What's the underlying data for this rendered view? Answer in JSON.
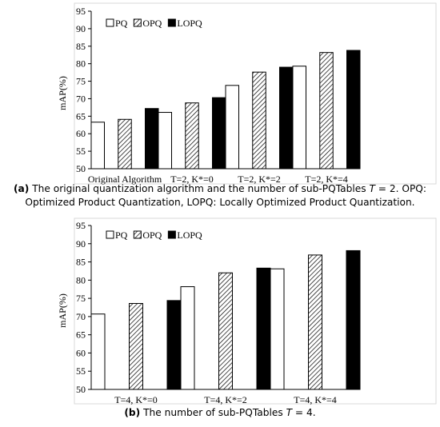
{
  "chart_data": [
    {
      "type": "bar",
      "ylabel": "mAP(%)",
      "ylim": [
        50,
        95
      ],
      "yticks": [
        50,
        55,
        60,
        65,
        70,
        75,
        80,
        85,
        90,
        95
      ],
      "grid": false,
      "legend_position": "top-left",
      "categories": [
        "Original Algorithm",
        "T=2, K*=0",
        "T=2, K*=2",
        "T=2, K*=4"
      ],
      "series": [
        {
          "name": "PQ",
          "pattern": "white",
          "values": [
            63.3,
            66.1,
            73.8,
            79.3
          ]
        },
        {
          "name": "OPQ",
          "pattern": "hatched",
          "values": [
            64.1,
            68.8,
            77.6,
            83.2
          ]
        },
        {
          "name": "LOPQ",
          "pattern": "black",
          "values": [
            67.2,
            70.3,
            79.0,
            83.8
          ]
        }
      ]
    },
    {
      "type": "bar",
      "ylabel": "mAP(%)",
      "ylim": [
        50,
        95
      ],
      "yticks": [
        50,
        55,
        60,
        65,
        70,
        75,
        80,
        85,
        90,
        95
      ],
      "grid": false,
      "legend_position": "top-left",
      "categories": [
        "T=4, K*=0",
        "T=4, K*=2",
        "T=4, K*=4"
      ],
      "series": [
        {
          "name": "PQ",
          "pattern": "white",
          "values": [
            70.7,
            78.2,
            83.1
          ]
        },
        {
          "name": "OPQ",
          "pattern": "hatched",
          "values": [
            73.6,
            82.0,
            86.9
          ]
        },
        {
          "name": "LOPQ",
          "pattern": "black",
          "values": [
            74.4,
            83.3,
            88.1
          ]
        }
      ]
    }
  ],
  "captions": {
    "a": {
      "label": "(a)",
      "text1": " The original quantization algorithm and the number of sub-PQTables ",
      "var": "T",
      "text2": " = 2. OPQ: Optimized Product Quantization, LOPQ: Locally Optimized Product Quantization."
    },
    "b": {
      "label": "(b)",
      "text1": " The number of sub-PQTables ",
      "var": "T",
      "text2": " = 4."
    }
  },
  "colors": {
    "bar_outline": "#000000",
    "bar_white": "#ffffff",
    "bar_black": "#000000",
    "axis": "#000000",
    "frame": "#d9d9d9"
  }
}
